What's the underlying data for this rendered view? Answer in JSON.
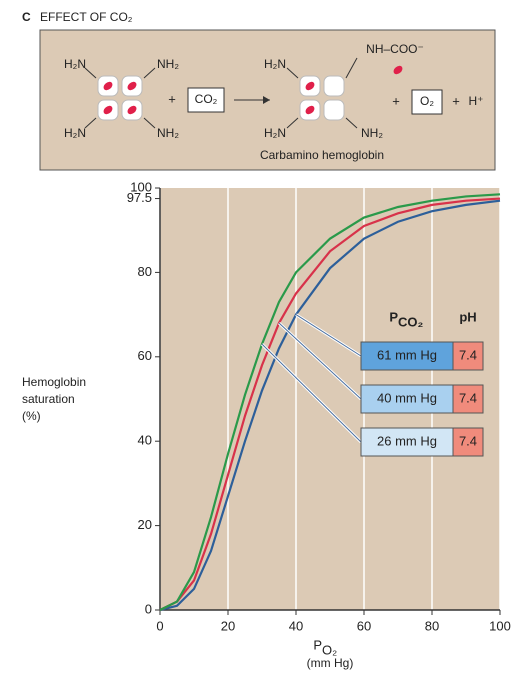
{
  "header": {
    "panel": "C",
    "title": "EFFECT OF CO₂"
  },
  "diagram": {
    "left": {
      "top_left": "H₂N",
      "top_right": "NH₂",
      "bottom_left": "H₂N",
      "bottom_right": "NH₂"
    },
    "plus1": "+",
    "reactant": "CO₂",
    "right": {
      "top_left": "H₂N",
      "top_right": "NH–COO⁻",
      "bottom_left": "H₂N",
      "bottom_right": "NH₂"
    },
    "plus2": "+",
    "product": "O₂",
    "plus3": "+",
    "proton": "H⁺",
    "caption": "Carbamino hemoglobin"
  },
  "chart_data": {
    "type": "line",
    "x_label": {
      "main": "P",
      "sub": "O₂",
      "unit": "(mm Hg)"
    },
    "y_label": [
      "Hemoglobin",
      "saturation",
      "(%)"
    ],
    "x": [
      0,
      5,
      10,
      15,
      20,
      25,
      30,
      35,
      40,
      50,
      60,
      70,
      80,
      90,
      100
    ],
    "xlim": [
      0,
      100
    ],
    "xticks": [
      0,
      20,
      40,
      60,
      80,
      100
    ],
    "ylim": [
      0,
      100
    ],
    "yticks": [
      0,
      20,
      40,
      60,
      80,
      97.5,
      100
    ],
    "grid": true,
    "background": "#dccab5",
    "legend_header": {
      "name": {
        "main": "P",
        "sub": "CO₂"
      },
      "ph": "pH"
    },
    "series": [
      {
        "name": "61 mm Hg",
        "ph": "7.4",
        "color": "#2d5f9a",
        "box_color": "#5fa3dc",
        "values": [
          0,
          1,
          5,
          14,
          27,
          40,
          52,
          62,
          70,
          81,
          88,
          92,
          94.5,
          96,
          97
        ]
      },
      {
        "name": "40 mm Hg",
        "ph": "7.4",
        "color": "#d8324a",
        "box_color": "#a9d0ef",
        "values": [
          0,
          2,
          7,
          18,
          32,
          46,
          58,
          68,
          75,
          85,
          91,
          94,
          96,
          97,
          97.5
        ]
      },
      {
        "name": "26 mm Hg",
        "ph": "7.4",
        "color": "#2a9a4a",
        "box_color": "#d2e6f5",
        "values": [
          0,
          2,
          9,
          22,
          37,
          51,
          63,
          73,
          80,
          88,
          93,
          95.5,
          97,
          98,
          98.5
        ]
      }
    ],
    "ph_color": "#f08b7c"
  }
}
